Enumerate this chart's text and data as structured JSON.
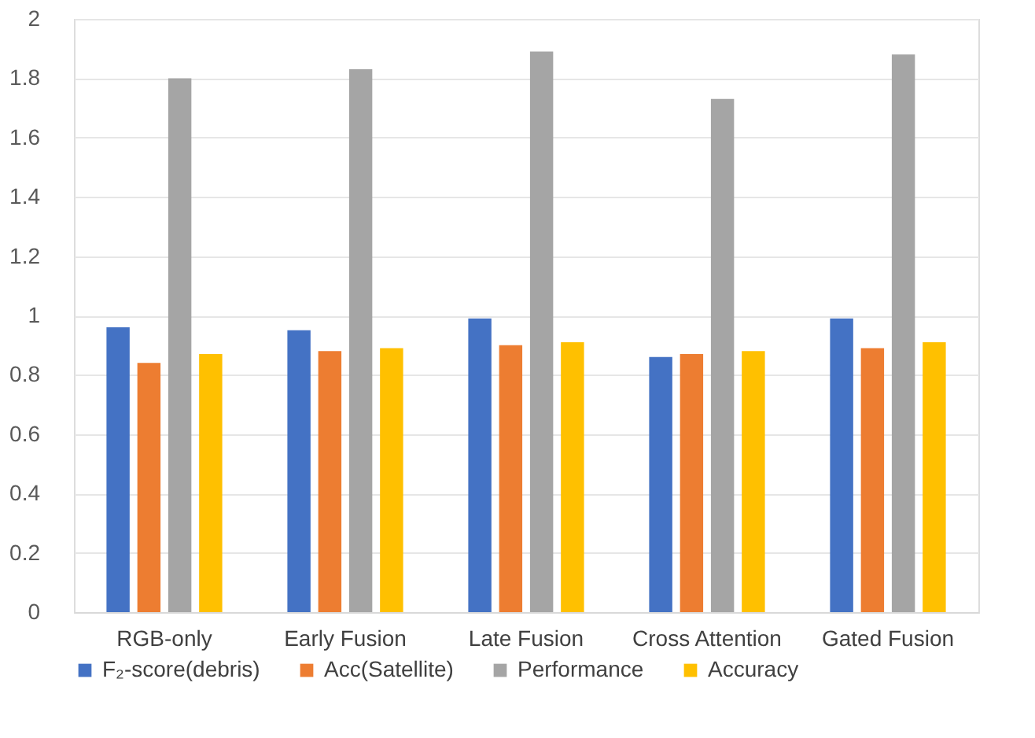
{
  "chart_data": {
    "type": "bar",
    "categories": [
      "RGB-only",
      "Early Fusion",
      "Late Fusion",
      "Cross Attention",
      "Gated Fusion"
    ],
    "series": [
      {
        "name": "F₂-score(debris)",
        "color": "#4472c4",
        "values": [
          0.96,
          0.95,
          0.99,
          0.86,
          0.99
        ]
      },
      {
        "name": "Acc(Satellite)",
        "color": "#ed7d31",
        "values": [
          0.84,
          0.88,
          0.9,
          0.87,
          0.89
        ]
      },
      {
        "name": "Performance",
        "color": "#a5a5a5",
        "values": [
          1.8,
          1.83,
          1.89,
          1.73,
          1.88
        ]
      },
      {
        "name": "Accuracy",
        "color": "#ffc000",
        "values": [
          0.87,
          0.89,
          0.91,
          0.88,
          0.91
        ]
      }
    ],
    "ylim": [
      0,
      2
    ],
    "yticks": [
      0,
      0.2,
      0.4,
      0.6,
      0.8,
      1,
      1.2,
      1.4,
      1.6,
      1.8,
      2
    ],
    "grid": "y",
    "legend": "bottom"
  }
}
